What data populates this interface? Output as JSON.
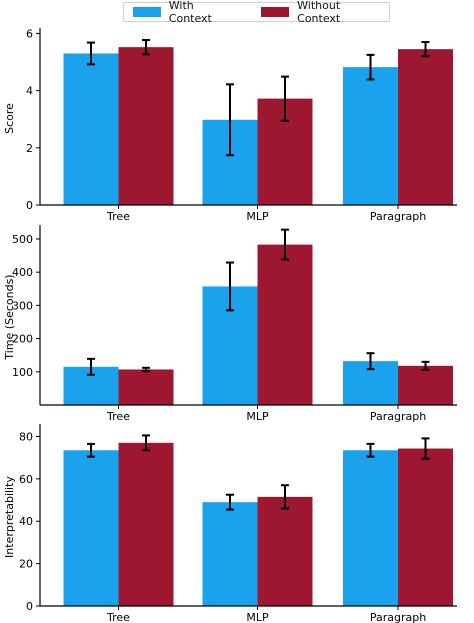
{
  "colors": {
    "with_context": "#1aa3ec",
    "without_context": "#9e1730",
    "error_bar": "#000000"
  },
  "legend": {
    "placement": "top-center",
    "items": [
      {
        "label": "With Context",
        "color_key": "with_context"
      },
      {
        "label": "Without Context",
        "color_key": "without_context"
      }
    ]
  },
  "chart_data": [
    {
      "type": "bar",
      "categories": [
        "Tree",
        "MLP",
        "Paragraph"
      ],
      "ylabel": "Score",
      "ylim": [
        0,
        6.05
      ],
      "yticks": [
        0,
        2,
        4,
        6
      ],
      "grid": false,
      "series": [
        {
          "name": "With Context",
          "values": [
            5.3,
            2.98,
            4.82
          ],
          "errors": [
            0.38,
            1.24,
            0.43
          ]
        },
        {
          "name": "Without Context",
          "values": [
            5.52,
            3.72,
            5.45
          ],
          "errors": [
            0.25,
            0.77,
            0.25
          ]
        }
      ]
    },
    {
      "type": "bar",
      "categories": [
        "Tree",
        "MLP",
        "Paragraph"
      ],
      "ylabel": "Time (Seconds)",
      "ylim": [
        0,
        530
      ],
      "yticks": [
        100,
        200,
        300,
        400,
        500
      ],
      "grid": false,
      "series": [
        {
          "name": "With Context",
          "values": [
            115,
            357,
            132
          ],
          "errors": [
            24,
            72,
            24
          ]
        },
        {
          "name": "Without Context",
          "values": [
            107,
            483,
            118
          ],
          "errors": [
            5,
            45,
            12
          ]
        }
      ]
    },
    {
      "type": "bar",
      "categories": [
        "Tree",
        "MLP",
        "Paragraph"
      ],
      "ylabel": "Interpretability",
      "ylim": [
        0,
        84
      ],
      "yticks": [
        0,
        20,
        40,
        60,
        80
      ],
      "grid": false,
      "series": [
        {
          "name": "With Context",
          "values": [
            73.5,
            49,
            73.5
          ],
          "errors": [
            3,
            3.5,
            3
          ]
        },
        {
          "name": "Without Context",
          "values": [
            77,
            51.5,
            74.3
          ],
          "errors": [
            3.5,
            5.5,
            4.8
          ]
        }
      ]
    }
  ]
}
